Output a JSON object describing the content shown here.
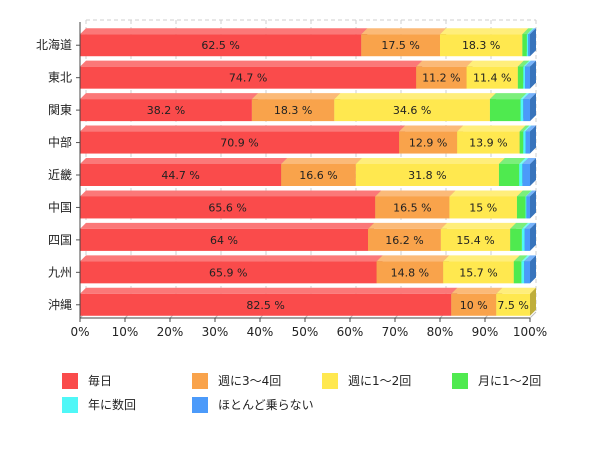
{
  "chart_data": {
    "type": "bar",
    "orientation": "horizontal",
    "stacked": "percent",
    "categories": [
      "北海道",
      "東北",
      "関東",
      "中部",
      "近畿",
      "中国",
      "四国",
      "九州",
      "沖縄"
    ],
    "series": [
      {
        "name": "毎日",
        "color": "#fa4b4b",
        "values": [
          62.5,
          74.7,
          38.2,
          70.9,
          44.7,
          65.6,
          64,
          65.9,
          82.5
        ]
      },
      {
        "name": "週に3～4回",
        "color": "#f9a34b",
        "values": [
          17.5,
          11.2,
          18.3,
          12.9,
          16.6,
          16.5,
          16.2,
          14.8,
          10
        ]
      },
      {
        "name": "週に1～2回",
        "color": "#ffe84f",
        "values": [
          18.3,
          11.4,
          34.6,
          13.9,
          31.8,
          15,
          15.4,
          15.7,
          7.5
        ]
      },
      {
        "name": "月に1～2回",
        "color": "#4fea4f",
        "values": [
          1.0,
          1.2,
          6.8,
          0.8,
          4.5,
          1.9,
          2.6,
          1.7,
          0
        ]
      },
      {
        "name": "年に数回",
        "color": "#4ff7f7",
        "values": [
          0.3,
          0.4,
          0.6,
          0.5,
          0.7,
          0.2,
          0.6,
          0.6,
          0
        ]
      },
      {
        "name": "ほとんど乗らない",
        "color": "#4b9afa",
        "values": [
          0.4,
          1.1,
          1.5,
          1.0,
          1.7,
          0.8,
          1.2,
          1.3,
          0
        ]
      }
    ],
    "data_labels": [
      [
        "62.5 %",
        "17.5 %",
        "18.3 %"
      ],
      [
        "74.7 %",
        "11.2 %",
        "11.4 %"
      ],
      [
        "38.2 %",
        "18.3 %",
        "34.6 %"
      ],
      [
        "70.9 %",
        "12.9 %",
        "13.9 %"
      ],
      [
        "44.7 %",
        "16.6 %",
        "31.8 %"
      ],
      [
        "65.6 %",
        "16.5 %",
        "15 %"
      ],
      [
        "64 %",
        "16.2 %",
        "15.4 %"
      ],
      [
        "65.9 %",
        "14.8 %",
        "15.7 %"
      ],
      [
        "82.5 %",
        "10 %",
        "7.5 %"
      ]
    ],
    "xlim": [
      0,
      100
    ],
    "x_ticks": [
      0,
      10,
      20,
      30,
      40,
      50,
      60,
      70,
      80,
      90,
      100
    ],
    "x_tick_labels": [
      "0%",
      "10%",
      "20%",
      "30%",
      "40%",
      "50%",
      "60%",
      "70%",
      "80%",
      "90%",
      "100%"
    ],
    "grid": true,
    "legend_position": "bottom",
    "style_3d": true
  }
}
